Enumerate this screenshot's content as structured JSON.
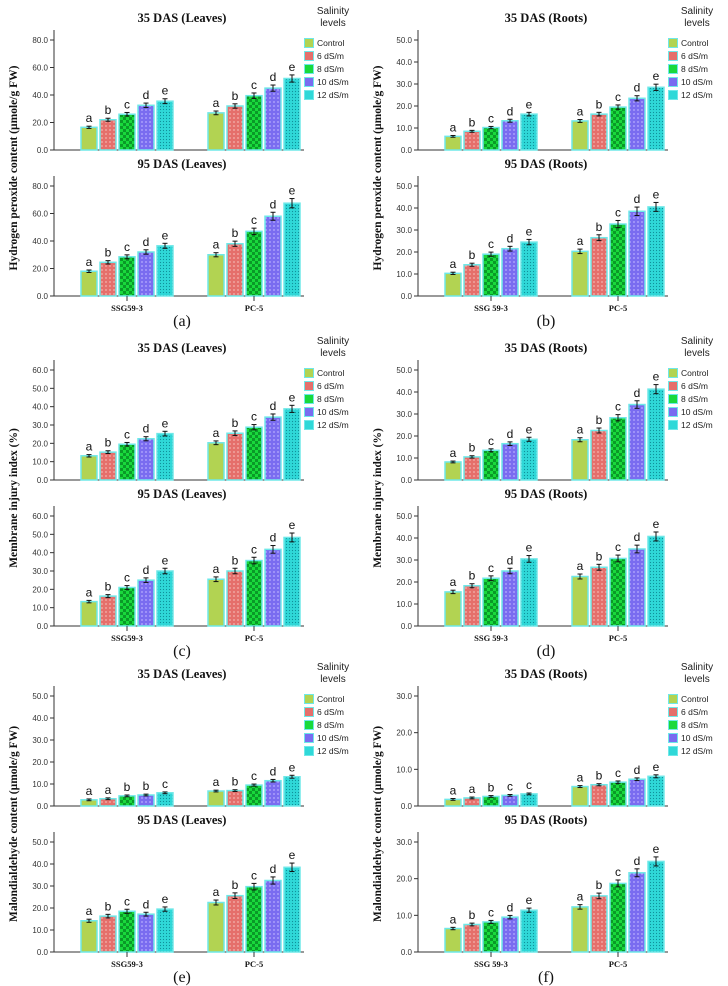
{
  "chart_data": [
    {
      "type": "bar",
      "label": "(a)",
      "ylabel": "Hydrogen peroxide content (µmole/g FW)",
      "ylim": [
        0,
        80
      ],
      "yticks": [
        "0.0",
        "20.0",
        "40.0",
        "60.0",
        "80.0"
      ],
      "groups": [
        "SSG59-3",
        "PC-5"
      ],
      "legend": {
        "title": "Salinity levels",
        "items": [
          "Control",
          "6 dS/m",
          "8 dS/m",
          "10 dS/m",
          "12 dS/m"
        ]
      },
      "panels": [
        {
          "title": "35 DAS (Leaves)",
          "values": [
            [
              16.5,
              22,
              26,
              32.5,
              35.5
            ],
            [
              27,
              32,
              39.5,
              45,
              52
            ]
          ],
          "letters": [
            [
              "a",
              "b",
              "c",
              "d",
              "e"
            ],
            [
              "a",
              "b",
              "c",
              "d",
              "e"
            ]
          ]
        },
        {
          "title": "95 DAS (Leaves)",
          "values": [
            [
              18,
              24.5,
              28.5,
              32,
              36.5
            ],
            [
              30,
              38,
              47,
              58,
              67.5
            ]
          ],
          "letters": [
            [
              "a",
              "b",
              "c",
              "d",
              "e"
            ],
            [
              "a",
              "b",
              "c",
              "d",
              "e"
            ]
          ]
        }
      ]
    },
    {
      "type": "bar",
      "label": "(b)",
      "ylabel": "Hydrogen peroxide content (µmole/g FW)",
      "ylim": [
        0,
        50
      ],
      "yticks": [
        "0.0",
        "10.0",
        "20.0",
        "30.0",
        "40.0",
        "50.0"
      ],
      "groups": [
        "SSG 59-3",
        "PC-5"
      ],
      "legend": {
        "title": "Salinity levels",
        "items": [
          "Control",
          "6 dS/m",
          "8 dS/m",
          "10 dS/m",
          "12 dS/m"
        ]
      },
      "panels": [
        {
          "title": "35 DAS (Roots)",
          "values": [
            [
              6.2,
              8.5,
              10.2,
              13.3,
              16.3
            ],
            [
              13.2,
              16.3,
              19.5,
              23.5,
              28.5
            ]
          ],
          "letters": [
            [
              "a",
              "b",
              "c",
              "d",
              "e"
            ],
            [
              "a",
              "b",
              "c",
              "d",
              "e"
            ]
          ]
        },
        {
          "title": "95 DAS (Roots)",
          "values": [
            [
              10.3,
              14.2,
              19,
              21.5,
              24.5
            ],
            [
              20.3,
              26.5,
              32.7,
              38.5,
              40.5
            ]
          ],
          "letters": [
            [
              "a",
              "b",
              "c",
              "d",
              "e"
            ],
            [
              "a",
              "b",
              "c",
              "d",
              "e"
            ]
          ]
        }
      ]
    },
    {
      "type": "bar",
      "label": "(c)",
      "ylabel": "Membrane injury index (%)",
      "ylim": [
        0,
        60
      ],
      "yticks": [
        "0.0",
        "10.0",
        "20.0",
        "30.0",
        "40.0",
        "50.0",
        "60.0"
      ],
      "groups": [
        "SSG59-3",
        "PC-5"
      ],
      "legend": {
        "title": "Salinity levels",
        "items": [
          "Control",
          "6 dS/m",
          "8 dS/m",
          "10 dS/m",
          "12 dS/m"
        ]
      },
      "panels": [
        {
          "title": "35 DAS (Leaves)",
          "values": [
            [
              13.2,
              15.2,
              19.5,
              22.5,
              25.3
            ],
            [
              20.3,
              25.5,
              28.8,
              34.3,
              38.8
            ]
          ],
          "letters": [
            [
              "a",
              "b",
              "c",
              "d",
              "e"
            ],
            [
              "a",
              "b",
              "c",
              "d",
              "e"
            ]
          ]
        },
        {
          "title": "95 DAS (Leaves)",
          "values": [
            [
              13.3,
              16.3,
              21,
              25,
              30
            ],
            [
              25.5,
              30,
              35.7,
              41.8,
              48.3
            ]
          ],
          "letters": [
            [
              "a",
              "b",
              "c",
              "d",
              "e"
            ],
            [
              "a",
              "b",
              "c",
              "d",
              "e"
            ]
          ]
        }
      ]
    },
    {
      "type": "bar",
      "label": "(d)",
      "ylabel": "Membrane injury index (%)",
      "ylim": [
        0,
        50
      ],
      "yticks": [
        "0.0",
        "10.0",
        "20.0",
        "30.0",
        "40.0",
        "50.0"
      ],
      "groups": [
        "SSG 59-3",
        "PC-5"
      ],
      "legend": {
        "title": "Salinity levels",
        "items": [
          "Control",
          "6 dS/m",
          "8 dS/m",
          "10 dS/m",
          "12 dS/m"
        ]
      },
      "panels": [
        {
          "title": "35 DAS (Roots)",
          "values": [
            [
              8.2,
              10.5,
              13.5,
              16.5,
              18.5
            ],
            [
              18.3,
              22.5,
              28.3,
              34.3,
              41.3
            ]
          ],
          "letters": [
            [
              "a",
              "b",
              "c",
              "d",
              "e"
            ],
            [
              "a",
              "b",
              "c",
              "d",
              "e"
            ]
          ]
        },
        {
          "title": "95 DAS (Roots)",
          "values": [
            [
              15.5,
              18.3,
              21.7,
              25,
              30.5
            ],
            [
              22.5,
              26.7,
              30.7,
              35,
              40.7
            ]
          ],
          "letters": [
            [
              "a",
              "b",
              "c",
              "d",
              "e"
            ],
            [
              "a",
              "b",
              "c",
              "d",
              "e"
            ]
          ]
        }
      ]
    },
    {
      "type": "bar",
      "label": "(e)",
      "ylabel": "Malondialdehyde content (µmole/g FW)",
      "ylim": [
        0,
        50
      ],
      "yticks": [
        "0.0",
        "10.0",
        "20.0",
        "30.0",
        "40.0",
        "50.0"
      ],
      "groups": [
        "SSG59-3",
        "PC-5"
      ],
      "legend": {
        "title": "Salinity levels",
        "items": [
          "Control",
          "6 dS/m",
          "8 dS/m",
          "10 dS/m",
          "12 dS/m"
        ]
      },
      "panels": [
        {
          "title": "35 DAS (Leaves)",
          "values": [
            [
              2.8,
              3.3,
              4.6,
              5,
              6
            ],
            [
              6.8,
              7,
              9.5,
              11.5,
              13.3
            ]
          ],
          "letters": [
            [
              "a",
              "a",
              "b",
              "b",
              "c"
            ],
            [
              "a",
              "b",
              "c",
              "d",
              "e"
            ]
          ]
        },
        {
          "title": "95 DAS (Leaves)",
          "values": [
            [
              14.2,
              16.3,
              18.5,
              17.2,
              19.5
            ],
            [
              22.5,
              25.6,
              29.7,
              32.5,
              38.5
            ]
          ],
          "letters": [
            [
              "a",
              "b",
              "c",
              "d",
              "e"
            ],
            [
              "a",
              "b",
              "c",
              "d",
              "e"
            ]
          ]
        }
      ]
    },
    {
      "type": "bar",
      "label": "(f)",
      "ylabel": "Malondialdehyde content (µmole/g FW)",
      "ylim": [
        0,
        30
      ],
      "yticks": [
        "0.0",
        "10.0",
        "20.0",
        "30.0"
      ],
      "groups": [
        "SSG 59-3",
        "PC-5"
      ],
      "legend": {
        "title": "Salinity levels",
        "items": [
          "Control",
          "6 dS/m",
          "8 dS/m",
          "10 dS/m",
          "12 dS/m"
        ]
      },
      "panels": [
        {
          "title": "35 DAS (Roots)",
          "values": [
            [
              1.8,
              2.2,
              2.6,
              2.9,
              3.3
            ],
            [
              5.3,
              5.8,
              6.5,
              7.3,
              8.1
            ]
          ],
          "letters": [
            [
              "a",
              "a",
              "b",
              "c",
              "c"
            ],
            [
              "a",
              "b",
              "c",
              "d",
              "e"
            ]
          ]
        },
        {
          "title": "95 DAS (Roots)",
          "values": [
            [
              6.4,
              7.5,
              8.2,
              9.5,
              11.4
            ],
            [
              12.3,
              15.3,
              18.7,
              21.6,
              24.7
            ]
          ],
          "letters": [
            [
              "a",
              "b",
              "c",
              "d",
              "e"
            ],
            [
              "a",
              "b",
              "c",
              "d",
              "e"
            ]
          ]
        }
      ]
    }
  ],
  "colors": {
    "series": [
      "#b2d352",
      "#e56f6b",
      "#19d93c",
      "#7a6cf0",
      "#2fd8d8"
    ],
    "bar_border": "#6ee8e8"
  }
}
